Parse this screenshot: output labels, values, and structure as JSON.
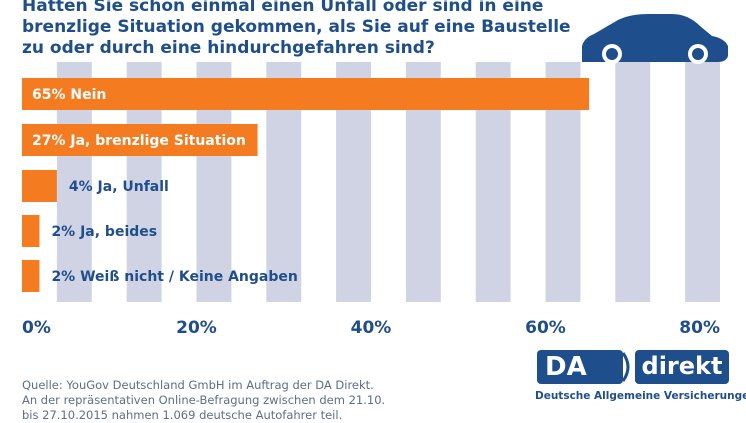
{
  "title": "Hatten Sie schon einmal einen Unfall oder sind in eine\nbrenzlige Situation gekommen, als Sie auf eine Baustelle\nzu oder durch eine hindurchgefahren sind?",
  "chart_data": {
    "type": "bar",
    "orientation": "horizontal",
    "title": "Hatten Sie schon einmal einen Unfall oder sind in eine brenzlige Situation gekommen, als Sie auf eine Baustelle zu oder durch eine hindurchgefahren sind?",
    "categories": [
      "Nein",
      "Ja, brenzlige Situation",
      "Ja, Unfall",
      "Ja, beides",
      "Weiß nicht / Keine Angaben"
    ],
    "values": [
      65,
      27,
      4,
      2,
      2
    ],
    "labels": [
      "65% Nein",
      "27% Ja, brenzlige Situation",
      "4% Ja, Unfall",
      "2% Ja, beides",
      "2% Weiß nicht / Keine Angaben"
    ],
    "xlim": [
      0,
      80
    ],
    "xticks": [
      0,
      20,
      40,
      60,
      80
    ],
    "xtick_labels": [
      "0%",
      "20%",
      "40%",
      "60%",
      "80%"
    ],
    "unit": "%",
    "colors": {
      "bar": "#f47b20",
      "stripe": "#cfd3e4",
      "text": "#1f4e8c",
      "car": "#1f4e8c"
    }
  },
  "source": {
    "line1": "Quelle: YouGov Deutschland GmbH im Auftrag der DA Direkt.",
    "line2": "An der repräsentativen Online-Befragung zwischen dem 21.10.",
    "line3": "bis 27.10.2015 nahmen 1.069 deutsche Autofahrer teil."
  },
  "brand": {
    "logo_left": "DA",
    "logo_right": "direkt",
    "tagline": "Deutsche Allgemeine Versicherungen"
  }
}
